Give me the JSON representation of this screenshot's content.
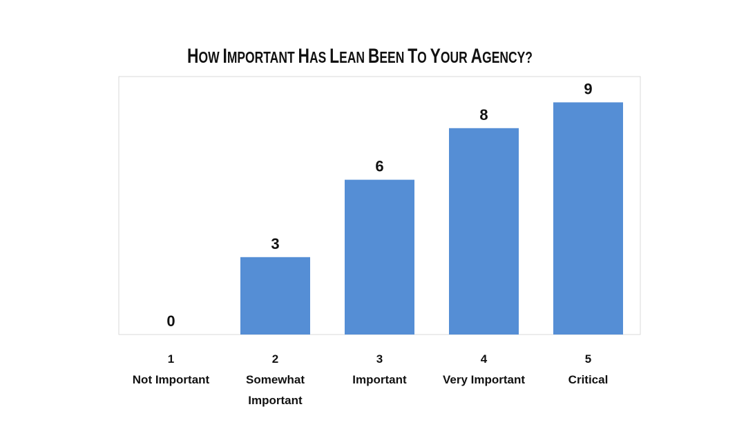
{
  "chart_data": {
    "type": "bar",
    "title": "How Important Has Lean Been To Your Agency?",
    "categories": [
      {
        "number": "1",
        "label": [
          "Not Important"
        ]
      },
      {
        "number": "2",
        "label": [
          "Somewhat",
          "Important"
        ]
      },
      {
        "number": "3",
        "label": [
          "Important"
        ]
      },
      {
        "number": "4",
        "label": [
          "Very Important"
        ]
      },
      {
        "number": "5",
        "label": [
          "Critical"
        ]
      }
    ],
    "values": [
      0,
      3,
      6,
      8,
      9
    ],
    "data_labels": [
      "0",
      "3",
      "6",
      "8",
      "9"
    ],
    "ylim": [
      0,
      10
    ],
    "grid": false,
    "legend": "none",
    "bar_color": "#558ED5",
    "frame_color": "#D9D9D9"
  }
}
